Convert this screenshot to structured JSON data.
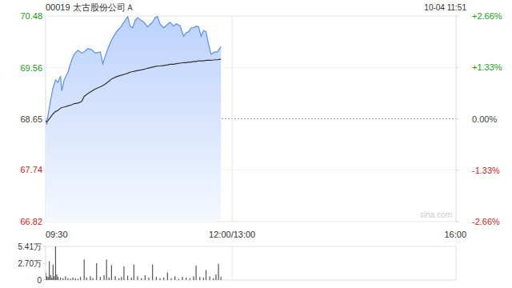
{
  "chart_data": [
    {
      "type": "line",
      "title": "00019 太古股份公司Ａ",
      "subtitle": "10-04 11:51",
      "annotations": [
        "sina.com"
      ],
      "x": [
        0,
        1,
        2,
        4,
        6,
        8,
        10,
        12,
        13,
        15,
        18,
        21,
        23,
        26,
        29,
        31,
        34,
        37,
        40,
        44,
        46,
        48,
        51,
        53,
        57,
        60,
        63,
        66,
        68,
        70,
        72,
        74,
        77,
        79,
        82,
        84,
        86,
        88,
        90,
        92,
        95,
        98,
        100,
        103,
        105,
        108,
        111,
        113,
        115,
        117,
        119,
        121,
        123,
        125,
        127,
        129,
        131,
        133,
        136,
        138,
        140,
        141
      ],
      "series": [
        {
          "type": "area",
          "color": "#5b8ef0",
          "values": [
            68.62,
            68.55,
            68.72,
            68.98,
            69.2,
            69.34,
            69.3,
            69.41,
            69.15,
            69.35,
            69.48,
            69.7,
            69.8,
            69.87,
            69.82,
            69.84,
            69.9,
            69.88,
            69.82,
            69.84,
            69.63,
            69.77,
            69.95,
            70.05,
            70.2,
            70.27,
            70.37,
            70.47,
            70.3,
            70.27,
            70.4,
            70.45,
            70.4,
            70.37,
            70.29,
            70.33,
            70.37,
            70.45,
            70.47,
            70.34,
            70.27,
            70.33,
            70.37,
            70.3,
            70.34,
            70.31,
            70.12,
            70.18,
            70.2,
            70.27,
            70.27,
            70.3,
            70.29,
            70.12,
            70.22,
            70.2,
            69.98,
            69.8,
            69.84,
            69.84,
            69.9,
            69.94
          ]
        },
        {
          "type": "line",
          "color": "#333333",
          "values": [
            68.62,
            68.6,
            68.62,
            68.68,
            68.74,
            68.78,
            68.8,
            68.84,
            68.85,
            68.86,
            68.88,
            68.9,
            68.92,
            68.93,
            68.96,
            69.05,
            69.1,
            69.14,
            69.18,
            69.22,
            69.24,
            69.27,
            69.32,
            69.36,
            69.4,
            69.42,
            69.44,
            69.46,
            69.48,
            69.49,
            69.5,
            69.51,
            69.52,
            69.53,
            69.55,
            69.56,
            69.57,
            69.58,
            69.59,
            69.59,
            69.6,
            69.61,
            69.62,
            69.62,
            69.63,
            69.64,
            69.65,
            69.65,
            69.66,
            69.66,
            69.67,
            69.67,
            69.68,
            69.68,
            69.68,
            69.69,
            69.69,
            69.69,
            69.7,
            69.7,
            69.71,
            69.71
          ]
        }
      ],
      "xlim": [
        0,
        330
      ],
      "xticks": [
        {
          "value": 0,
          "label": "09:30"
        },
        {
          "value": 150,
          "label": "12:00/13:00"
        },
        {
          "value": 330,
          "label": "16:00"
        }
      ],
      "ylim": [
        66.82,
        70.48
      ],
      "yticks": [
        66.82,
        67.74,
        68.65,
        69.56,
        70.48
      ],
      "y2lim": [
        -2.66,
        2.66
      ],
      "y2ticks": [
        {
          "value": -2.66,
          "label": "-2.66%"
        },
        {
          "value": -1.33,
          "label": "-1.33%"
        },
        {
          "value": 0,
          "label": "0.00%"
        },
        {
          "value": 1.33,
          "label": "+1.33%"
        },
        {
          "value": 2.66,
          "label": "+2.66%"
        }
      ],
      "grid": true
    },
    {
      "type": "bar",
      "color": "#555555",
      "tick_labels": "y",
      "x": [
        0,
        1,
        2,
        3,
        4,
        5,
        6,
        7,
        8,
        9,
        10,
        12,
        14,
        16,
        18,
        20,
        22,
        24,
        26,
        28,
        31,
        33,
        36,
        38,
        41,
        44,
        47,
        49,
        51,
        53,
        56,
        59,
        61,
        63,
        66,
        69,
        71,
        74,
        77,
        80,
        83,
        86,
        89,
        92,
        95,
        98,
        101,
        104,
        107,
        110,
        113,
        116,
        119,
        121,
        124,
        127,
        129,
        132,
        135,
        137,
        139,
        141
      ],
      "values": [
        1.2,
        0.6,
        0.5,
        3.0,
        0.8,
        0.4,
        2.5,
        0.6,
        5.41,
        0.9,
        0.5,
        0.4,
        0.3,
        0.6,
        0.3,
        0.2,
        0.4,
        0.3,
        0.2,
        0.5,
        3.3,
        0.4,
        0.6,
        0.3,
        2.7,
        0.5,
        0.8,
        3.3,
        0.4,
        2.4,
        0.6,
        0.3,
        0.5,
        2.2,
        0.7,
        0.4,
        2.5,
        0.6,
        0.3,
        0.8,
        0.4,
        2.5,
        0.5,
        0.3,
        0.4,
        1.2,
        0.3,
        0.6,
        0.2,
        0.5,
        0.4,
        0.3,
        0.6,
        2.3,
        0.5,
        0.4,
        1.6,
        0.6,
        0.3,
        0.9,
        2.6,
        0.5
      ],
      "xlim": [
        0,
        330
      ],
      "xticks": [
        0,
        150,
        330
      ],
      "ylim": [
        0,
        5.41
      ],
      "yticks": [
        0,
        {
          "value": 2.7,
          "label": "2.70万"
        },
        {
          "value": 5.41,
          "label": "5.41万"
        }
      ]
    }
  ]
}
